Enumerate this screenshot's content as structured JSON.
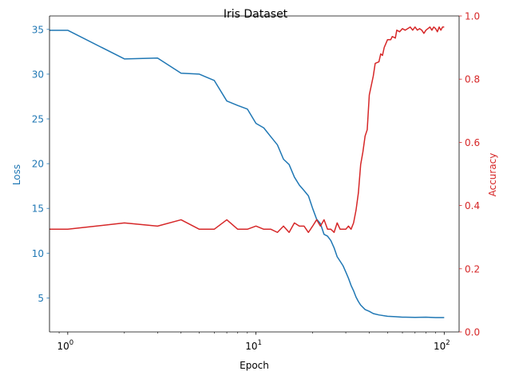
{
  "chart_data": {
    "type": "line",
    "title": "Iris Dataset",
    "xlabel": "Epoch",
    "xscale": "log",
    "xlim": [
      0.8,
      120
    ],
    "x_ticks": [
      {
        "value": 1,
        "base": "10",
        "exp": "0"
      },
      {
        "value": 10,
        "base": "10",
        "exp": "1"
      },
      {
        "value": 100,
        "base": "10",
        "exp": "2"
      }
    ],
    "y_left": {
      "label": "Loss",
      "color": "#1f77b4",
      "lim": [
        1.2,
        36.5
      ],
      "ticks": [
        "5",
        "10",
        "15",
        "20",
        "25",
        "30",
        "35"
      ]
    },
    "y_right": {
      "label": "Accuracy",
      "color": "#d62728",
      "lim": [
        0.0,
        1.0
      ],
      "ticks": [
        "0.0",
        "0.2",
        "0.4",
        "0.6",
        "0.8",
        "1.0"
      ]
    },
    "grid": false,
    "legend": "none",
    "series": [
      {
        "axis": "left",
        "color": "#1f77b4",
        "points": [
          [
            0.8,
            34.9
          ],
          [
            1,
            34.9
          ],
          [
            2,
            31.7
          ],
          [
            3,
            31.8
          ],
          [
            4,
            30.1
          ],
          [
            5,
            30.0
          ],
          [
            6,
            29.3
          ],
          [
            7,
            27.0
          ],
          [
            8,
            26.5
          ],
          [
            9,
            26.1
          ],
          [
            10,
            24.5
          ],
          [
            11,
            24.0
          ],
          [
            12,
            23.0
          ],
          [
            13,
            22.1
          ],
          [
            14,
            20.5
          ],
          [
            15,
            19.9
          ],
          [
            16,
            18.5
          ],
          [
            17,
            17.6
          ],
          [
            18,
            17.0
          ],
          [
            19,
            16.4
          ],
          [
            20,
            15.0
          ],
          [
            21,
            13.8
          ],
          [
            22,
            13.3
          ],
          [
            23,
            12.1
          ],
          [
            24,
            11.9
          ],
          [
            25,
            11.4
          ],
          [
            26,
            10.6
          ],
          [
            27,
            9.6
          ],
          [
            28,
            9.1
          ],
          [
            29,
            8.6
          ],
          [
            30,
            7.9
          ],
          [
            31,
            7.2
          ],
          [
            32,
            6.4
          ],
          [
            33,
            5.8
          ],
          [
            34,
            5.1
          ],
          [
            35,
            4.6
          ],
          [
            36,
            4.2
          ],
          [
            38,
            3.7
          ],
          [
            40,
            3.5
          ],
          [
            42,
            3.25
          ],
          [
            45,
            3.1
          ],
          [
            50,
            2.95
          ],
          [
            55,
            2.9
          ],
          [
            60,
            2.85
          ],
          [
            70,
            2.83
          ],
          [
            80,
            2.85
          ],
          [
            90,
            2.81
          ],
          [
            100,
            2.8
          ]
        ]
      },
      {
        "axis": "right",
        "color": "#d62728",
        "points": [
          [
            0.8,
            0.325
          ],
          [
            1,
            0.325
          ],
          [
            2,
            0.345
          ],
          [
            3,
            0.335
          ],
          [
            4,
            0.355
          ],
          [
            5,
            0.325
          ],
          [
            6,
            0.325
          ],
          [
            7,
            0.355
          ],
          [
            8,
            0.325
          ],
          [
            9,
            0.325
          ],
          [
            10,
            0.335
          ],
          [
            11,
            0.325
          ],
          [
            12,
            0.325
          ],
          [
            13,
            0.315
          ],
          [
            14,
            0.335
          ],
          [
            15,
            0.315
          ],
          [
            16,
            0.345
          ],
          [
            17,
            0.335
          ],
          [
            18,
            0.335
          ],
          [
            19,
            0.315
          ],
          [
            20,
            0.335
          ],
          [
            21,
            0.355
          ],
          [
            22,
            0.335
          ],
          [
            23,
            0.355
          ],
          [
            24,
            0.325
          ],
          [
            25,
            0.325
          ],
          [
            26,
            0.315
          ],
          [
            27,
            0.345
          ],
          [
            28,
            0.325
          ],
          [
            29,
            0.325
          ],
          [
            30,
            0.325
          ],
          [
            31,
            0.335
          ],
          [
            32,
            0.325
          ],
          [
            33,
            0.345
          ],
          [
            34,
            0.385
          ],
          [
            35,
            0.44
          ],
          [
            36,
            0.53
          ],
          [
            37,
            0.57
          ],
          [
            38,
            0.62
          ],
          [
            39,
            0.64
          ],
          [
            40,
            0.75
          ],
          [
            42,
            0.81
          ],
          [
            43,
            0.85
          ],
          [
            45,
            0.855
          ],
          [
            46,
            0.88
          ],
          [
            47,
            0.875
          ],
          [
            48,
            0.9
          ],
          [
            50,
            0.925
          ],
          [
            52,
            0.925
          ],
          [
            53,
            0.935
          ],
          [
            55,
            0.93
          ],
          [
            56,
            0.955
          ],
          [
            58,
            0.95
          ],
          [
            60,
            0.96
          ],
          [
            62,
            0.955
          ],
          [
            64,
            0.96
          ],
          [
            66,
            0.965
          ],
          [
            68,
            0.955
          ],
          [
            70,
            0.965
          ],
          [
            72,
            0.955
          ],
          [
            74,
            0.96
          ],
          [
            76,
            0.955
          ],
          [
            78,
            0.945
          ],
          [
            80,
            0.955
          ],
          [
            82,
            0.96
          ],
          [
            84,
            0.965
          ],
          [
            86,
            0.955
          ],
          [
            88,
            0.965
          ],
          [
            90,
            0.96
          ],
          [
            92,
            0.95
          ],
          [
            94,
            0.965
          ],
          [
            96,
            0.955
          ],
          [
            98,
            0.965
          ],
          [
            100,
            0.965
          ]
        ]
      }
    ]
  }
}
